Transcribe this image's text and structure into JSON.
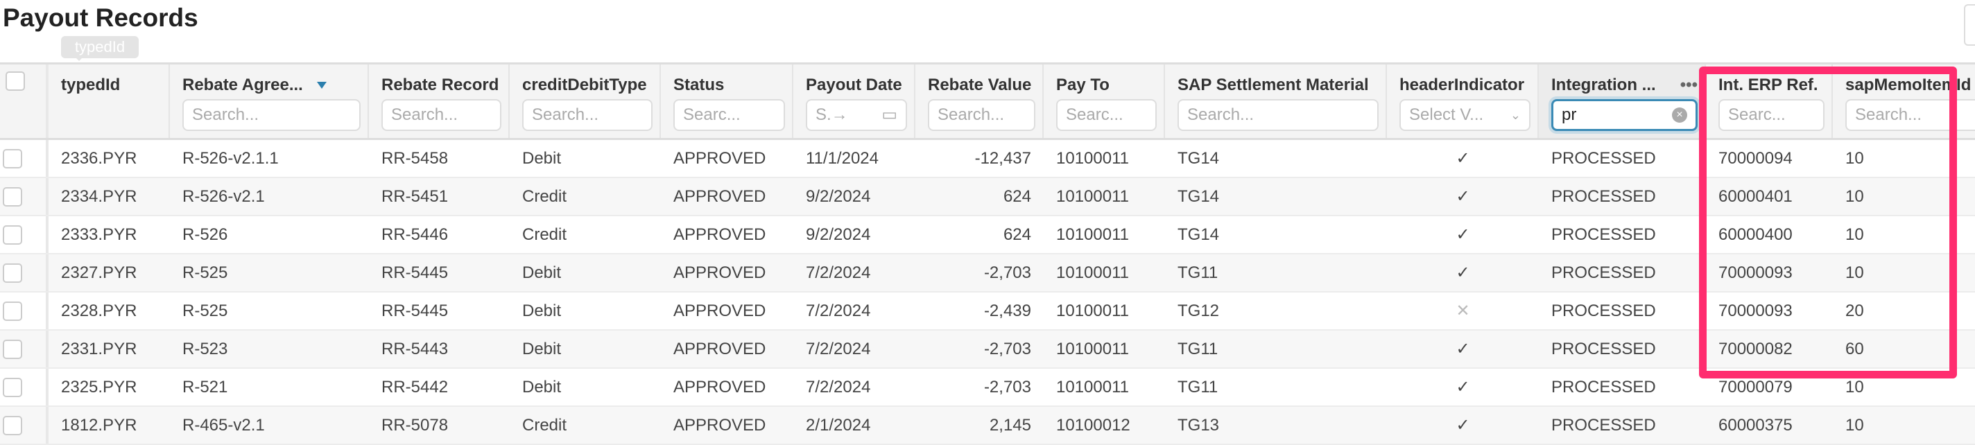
{
  "page": {
    "title": "Payout Records",
    "tooltip": "typedId"
  },
  "columns": [
    {
      "key": "typedId",
      "label": "typedId",
      "filter": null
    },
    {
      "key": "agreement",
      "label": "Rebate Agree...",
      "filter": "Search...",
      "sorted": "desc"
    },
    {
      "key": "record",
      "label": "Rebate Record",
      "filter": "Search..."
    },
    {
      "key": "type",
      "label": "creditDebitType",
      "filter": "Search..."
    },
    {
      "key": "status",
      "label": "Status",
      "filter": "Searc..."
    },
    {
      "key": "date",
      "label": "Payout Date",
      "filter": "S.→"
    },
    {
      "key": "value",
      "label": "Rebate Value",
      "filter": "Search..."
    },
    {
      "key": "payto",
      "label": "Pay To",
      "filter": "Searc..."
    },
    {
      "key": "sap",
      "label": "SAP Settlement Material",
      "filter": "Search..."
    },
    {
      "key": "header",
      "label": "headerIndicator",
      "filter": "Select V..."
    },
    {
      "key": "integration",
      "label": "Integration ...",
      "filter_value": "pr"
    },
    {
      "key": "erp",
      "label": "Int. ERP Ref.",
      "filter": "Searc..."
    },
    {
      "key": "memo",
      "label": "sapMemoItemId",
      "filter": "Search..."
    }
  ],
  "rows": [
    [
      "2336.PYR",
      "R-526-v2.1.1",
      "RR-5458",
      "Debit",
      "APPROVED",
      "11/1/2024",
      "-12,437",
      "10100011",
      "TG14",
      "check",
      "PROCESSED",
      "70000094",
      "10"
    ],
    [
      "2334.PYR",
      "R-526-v2.1",
      "RR-5451",
      "Credit",
      "APPROVED",
      "9/2/2024",
      "624",
      "10100011",
      "TG14",
      "check",
      "PROCESSED",
      "60000401",
      "10"
    ],
    [
      "2333.PYR",
      "R-526",
      "RR-5446",
      "Credit",
      "APPROVED",
      "9/2/2024",
      "624",
      "10100011",
      "TG14",
      "check",
      "PROCESSED",
      "60000400",
      "10"
    ],
    [
      "2327.PYR",
      "R-525",
      "RR-5445",
      "Debit",
      "APPROVED",
      "7/2/2024",
      "-2,703",
      "10100011",
      "TG11",
      "check",
      "PROCESSED",
      "70000093",
      "10"
    ],
    [
      "2328.PYR",
      "R-525",
      "RR-5445",
      "Debit",
      "APPROVED",
      "7/2/2024",
      "-2,439",
      "10100011",
      "TG12",
      "cross",
      "PROCESSED",
      "70000093",
      "20"
    ],
    [
      "2331.PYR",
      "R-523",
      "RR-5443",
      "Debit",
      "APPROVED",
      "7/2/2024",
      "-2,703",
      "10100011",
      "TG11",
      "check",
      "PROCESSED",
      "70000082",
      "60"
    ],
    [
      "2325.PYR",
      "R-521",
      "RR-5442",
      "Debit",
      "APPROVED",
      "7/2/2024",
      "-2,703",
      "10100011",
      "TG11",
      "check",
      "PROCESSED",
      "70000079",
      "10"
    ],
    [
      "1812.PYR",
      "R-465-v2.1",
      "RR-5078",
      "Credit",
      "APPROVED",
      "2/1/2024",
      "2,145",
      "10100012",
      "TG13",
      "check",
      "PROCESSED",
      "60000375",
      "10"
    ]
  ],
  "colors": {
    "highlight": "#ff2d6f",
    "accent": "#2b7fad"
  }
}
